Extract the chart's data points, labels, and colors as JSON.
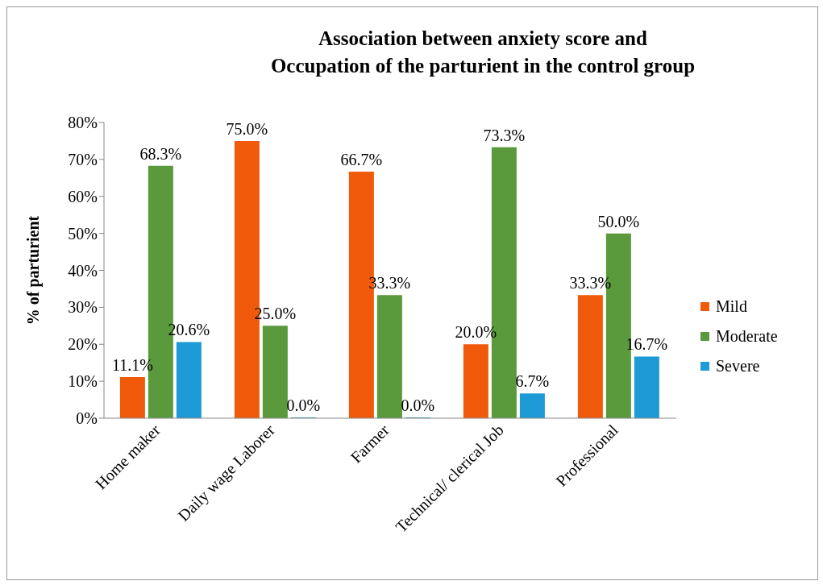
{
  "chart_data": {
    "type": "bar",
    "title": "Association between anxiety score and\nOccupation of the parturient in the control group",
    "ylabel": "% of parturient",
    "categories": [
      "Home maker",
      "Daily wage Laborer",
      "Farmer",
      "Technical/ clerical Job",
      "Professional"
    ],
    "series": [
      {
        "name": "Mild",
        "color": "#f05a0a",
        "values": [
          11.1,
          75.0,
          66.7,
          20.0,
          33.3
        ],
        "value_labels": [
          "11.1%",
          "75.0%",
          "66.7%",
          "20.0%",
          "33.3%"
        ]
      },
      {
        "name": "Moderate",
        "color": "#5a9a3c",
        "values": [
          68.3,
          25.0,
          33.3,
          73.3,
          50.0
        ],
        "value_labels": [
          "68.3%",
          "25.0%",
          "33.3%",
          "73.3%",
          "50.0%"
        ]
      },
      {
        "name": "Severe",
        "color": "#1e9ad6",
        "values": [
          20.6,
          0.0,
          0.0,
          6.7,
          16.7
        ],
        "value_labels": [
          "20.6%",
          "0.0%",
          "0.0%",
          "6.7%",
          "16.7%"
        ]
      }
    ],
    "ylim": [
      0,
      80
    ],
    "yticks": [
      {
        "value": 0,
        "label": "0%"
      },
      {
        "value": 10,
        "label": "10%"
      },
      {
        "value": 20,
        "label": "20%"
      },
      {
        "value": 30,
        "label": "30%"
      },
      {
        "value": 40,
        "label": "40%"
      },
      {
        "value": 50,
        "label": "50%"
      },
      {
        "value": 60,
        "label": "60%"
      },
      {
        "value": 70,
        "label": "70%"
      },
      {
        "value": 80,
        "label": "80%"
      }
    ],
    "grid": false,
    "legend": "right"
  }
}
